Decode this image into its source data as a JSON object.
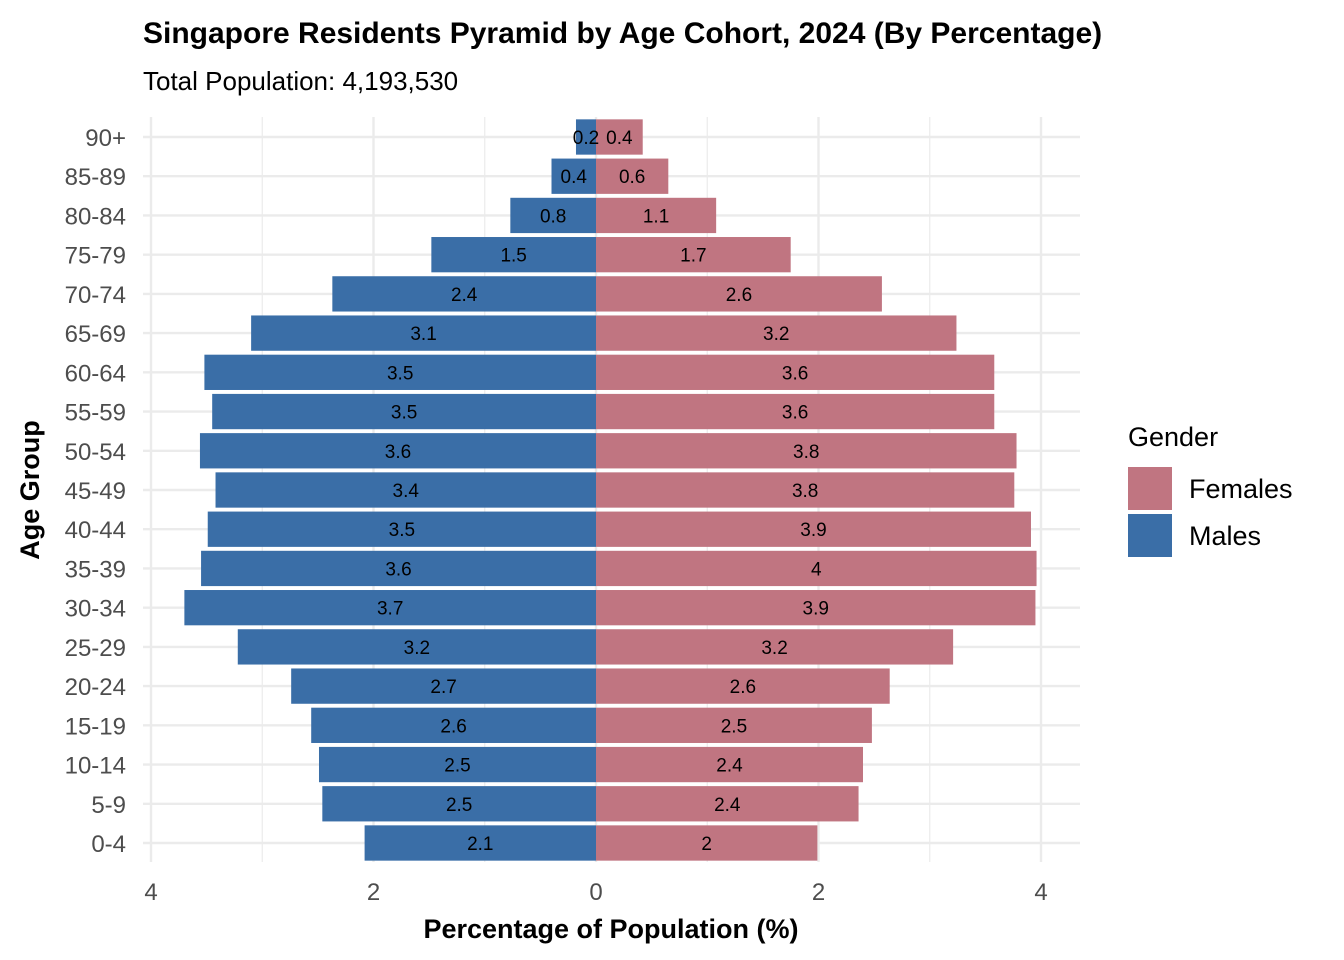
{
  "chart_data": {
    "type": "bar",
    "orientation": "horizontal",
    "title": "Singapore Residents Pyramid by Age Cohort, 2024 (By Percentage)",
    "subtitle": "Total Population: 4,193,530",
    "xlabel": "Percentage of Population (%)",
    "ylabel": "Age Group",
    "xlim": [
      -4.0,
      4.0
    ],
    "x_ticks": [
      -4,
      -2,
      0,
      2,
      4
    ],
    "x_tick_labels": [
      "4",
      "2",
      "0",
      "2",
      "4"
    ],
    "grid": true,
    "legend": {
      "title": "Gender",
      "position": "right"
    },
    "categories": [
      "90+",
      "85-89",
      "80-84",
      "75-79",
      "70-74",
      "65-69",
      "60-64",
      "55-59",
      "50-54",
      "45-49",
      "40-44",
      "35-39",
      "30-34",
      "25-29",
      "20-24",
      "15-19",
      "10-14",
      "5-9",
      "0-4"
    ],
    "series": [
      {
        "name": "Females",
        "color": "#C07581",
        "values": [
          0.42,
          0.65,
          1.08,
          1.75,
          2.57,
          3.24,
          3.58,
          3.58,
          3.78,
          3.76,
          3.91,
          3.96,
          3.95,
          3.21,
          2.64,
          2.48,
          2.4,
          2.36,
          1.99
        ],
        "labels": [
          "0.4",
          "0.6",
          "1.1",
          "1.7",
          "2.6",
          "3.2",
          "3.6",
          "3.6",
          "3.8",
          "3.8",
          "3.9",
          "4",
          "3.9",
          "3.2",
          "2.6",
          "2.5",
          "2.4",
          "2.4",
          "2"
        ]
      },
      {
        "name": "Males",
        "color": "#3A6EA7",
        "values": [
          0.18,
          0.4,
          0.77,
          1.48,
          2.37,
          3.1,
          3.52,
          3.45,
          3.56,
          3.42,
          3.49,
          3.55,
          3.7,
          3.22,
          2.74,
          2.56,
          2.49,
          2.46,
          2.08
        ],
        "labels": [
          "0.2",
          "0.4",
          "0.8",
          "1.5",
          "2.4",
          "3.1",
          "3.5",
          "3.5",
          "3.6",
          "3.4",
          "3.5",
          "3.6",
          "3.7",
          "3.2",
          "2.7",
          "2.6",
          "2.5",
          "2.5",
          "2.1"
        ]
      }
    ]
  }
}
